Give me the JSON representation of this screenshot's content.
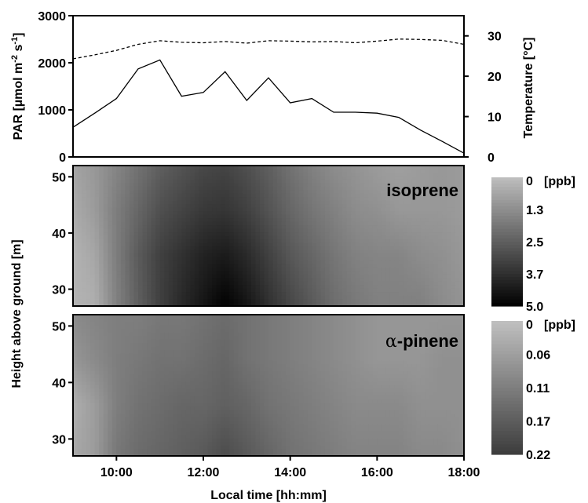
{
  "chart_data": [
    {
      "type": "line",
      "x_label": "",
      "ylabel": "PAR [µmol m-2 s-1]",
      "ylabel_parts": {
        "base": "PAR [µmol m",
        "sup1": "-2",
        "mid": " s",
        "sup2": "-1",
        "end": "]"
      },
      "y2label": "Temperature [°C]",
      "ylim": [
        0,
        3000
      ],
      "y2lim": [
        0,
        35
      ],
      "xlim_hours": [
        9,
        18
      ],
      "yticks": [
        "0",
        "1000",
        "2000",
        "3000"
      ],
      "y2ticks": [
        "0",
        "10",
        "20",
        "30"
      ],
      "grid": false,
      "series": [
        {
          "axis": "left",
          "style": "solid",
          "x": [
            "09:00",
            "09:30",
            "10:00",
            "10:30",
            "11:00",
            "11:30",
            "12:00",
            "12:30",
            "13:00",
            "13:30",
            "14:00",
            "14:30",
            "15:00",
            "15:30",
            "16:00",
            "16:30",
            "17:00",
            "17:30",
            "18:00"
          ],
          "y": [
            630,
            930,
            1240,
            1870,
            2060,
            1290,
            1370,
            1810,
            1200,
            1680,
            1150,
            1240,
            950,
            950,
            930,
            840,
            570,
            330,
            80
          ]
        },
        {
          "axis": "right",
          "style": "dashed",
          "x": [
            "09:00",
            "09:30",
            "10:00",
            "10:30",
            "11:00",
            "11:30",
            "12:00",
            "12:30",
            "13:00",
            "13:30",
            "14:00",
            "14:30",
            "15:00",
            "15:30",
            "16:00",
            "16:30",
            "17:00",
            "17:30",
            "18:00"
          ],
          "y": [
            24.3,
            25.3,
            26.4,
            27.9,
            28.8,
            28.4,
            28.3,
            28.6,
            28.2,
            28.8,
            28.7,
            28.5,
            28.6,
            28.3,
            28.7,
            29.2,
            29.1,
            28.9,
            27.9
          ]
        }
      ]
    },
    {
      "type": "heatmap",
      "annotation": "isoprene",
      "ylabel": "Height above ground [m]",
      "ylim": [
        27,
        52
      ],
      "yticks": [
        "30",
        "40",
        "50"
      ],
      "xlim_hours": [
        9,
        18
      ],
      "colorbar_unit": "[ppb]",
      "colorbar_ticks": [
        "0",
        "1.3",
        "2.5",
        "3.7",
        "5.0"
      ],
      "colorbar_range": [
        0,
        5.0
      ],
      "heights": [
        28,
        36,
        44,
        52
      ],
      "hours": [
        9,
        9.5,
        10,
        10.5,
        11,
        11.5,
        12,
        12.5,
        13,
        13.5,
        14,
        14.5,
        15,
        15.5,
        16,
        16.5,
        17,
        17.5,
        18
      ],
      "values": [
        [
          0.3,
          0.4,
          1.6,
          2.5,
          3.3,
          3.9,
          4.4,
          4.9,
          4.4,
          3.7,
          3.1,
          2.6,
          2.1,
          1.8,
          1.6,
          1.6,
          1.6,
          1.3,
          1.1
        ],
        [
          0.3,
          0.6,
          1.7,
          2.6,
          3.3,
          3.7,
          4.1,
          4.3,
          3.9,
          3.3,
          2.7,
          2.3,
          1.9,
          1.6,
          1.5,
          1.5,
          1.3,
          1.2,
          1.0
        ],
        [
          0.5,
          0.9,
          1.7,
          2.3,
          2.9,
          3.2,
          3.5,
          3.6,
          3.3,
          2.8,
          2.3,
          1.9,
          1.6,
          1.3,
          1.2,
          1.0,
          1.0,
          1.0,
          0.9
        ],
        [
          0.7,
          1.0,
          1.5,
          2.0,
          2.5,
          2.8,
          3.1,
          3.2,
          2.9,
          2.5,
          2.0,
          1.6,
          1.3,
          1.1,
          0.9,
          0.8,
          0.9,
          1.0,
          0.9
        ]
      ]
    },
    {
      "type": "heatmap",
      "annotation": "α-pinene",
      "annotation_parts": {
        "greek": "α",
        "rest": "-pinene"
      },
      "ylabel": "Height above ground [m]",
      "xlabel": "Local time [hh:mm]",
      "ylim": [
        27,
        52
      ],
      "yticks": [
        "30",
        "40",
        "50"
      ],
      "xticks": [
        "10:00",
        "12:00",
        "14:00",
        "16:00",
        "18:00"
      ],
      "xlim_hours": [
        9,
        18
      ],
      "colorbar_unit": "[ppb]",
      "colorbar_ticks": [
        "0",
        "0.06",
        "0.11",
        "0.17",
        "0.22"
      ],
      "colorbar_range": [
        0,
        0.22
      ],
      "heights": [
        28,
        36,
        44,
        52
      ],
      "hours": [
        9,
        9.5,
        10,
        10.5,
        11,
        11.5,
        12,
        12.5,
        13,
        13.5,
        14,
        14.5,
        15,
        15.5,
        16,
        16.5,
        17,
        17.5,
        18
      ],
      "values": [
        [
          0.04,
          0.06,
          0.12,
          0.14,
          0.15,
          0.16,
          0.17,
          0.19,
          0.17,
          0.15,
          0.13,
          0.12,
          0.11,
          0.1,
          0.1,
          0.1,
          0.09,
          0.09,
          0.08
        ],
        [
          0.03,
          0.06,
          0.11,
          0.13,
          0.14,
          0.15,
          0.15,
          0.16,
          0.15,
          0.13,
          0.12,
          0.11,
          0.1,
          0.09,
          0.09,
          0.09,
          0.08,
          0.08,
          0.08
        ],
        [
          0.07,
          0.09,
          0.11,
          0.12,
          0.13,
          0.13,
          0.14,
          0.15,
          0.13,
          0.12,
          0.11,
          0.1,
          0.09,
          0.08,
          0.07,
          0.07,
          0.07,
          0.08,
          0.08
        ],
        [
          0.09,
          0.1,
          0.11,
          0.11,
          0.12,
          0.12,
          0.13,
          0.14,
          0.13,
          0.12,
          0.11,
          0.1,
          0.09,
          0.08,
          0.07,
          0.07,
          0.07,
          0.07,
          0.07
        ]
      ]
    }
  ]
}
